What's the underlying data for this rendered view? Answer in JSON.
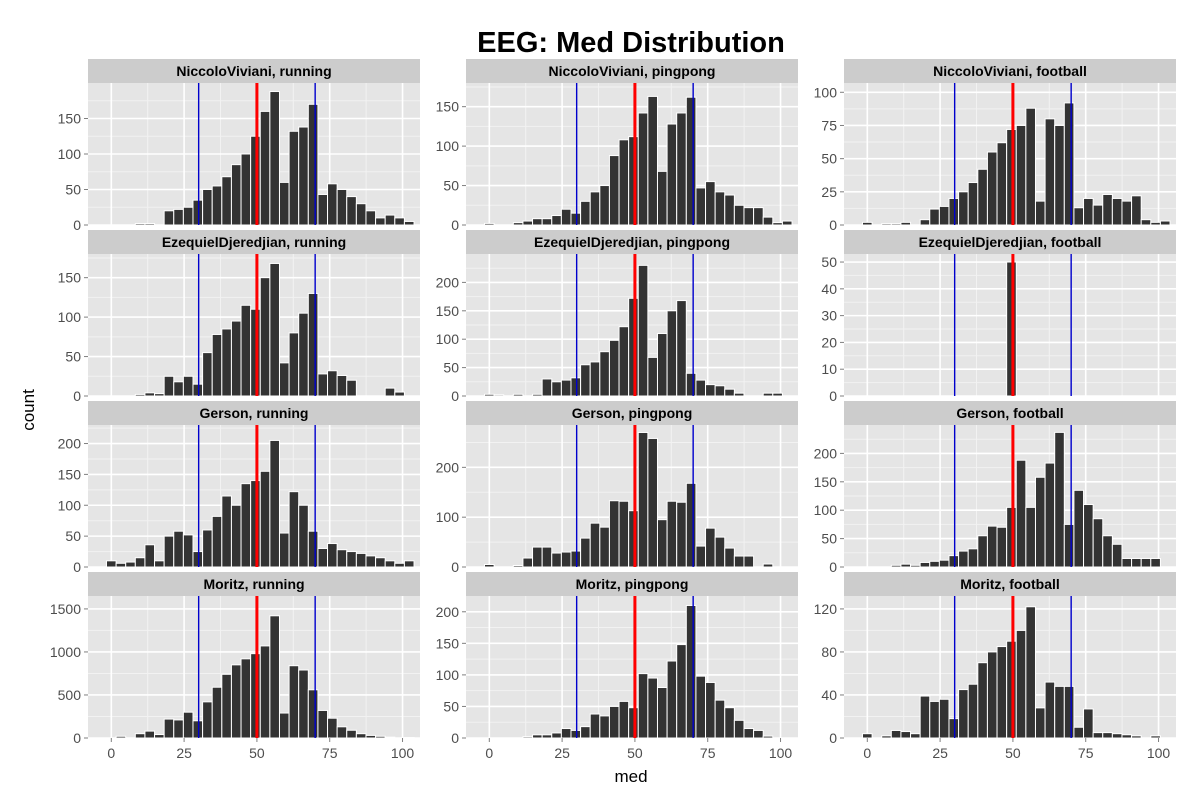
{
  "chart_data": {
    "type": "bar",
    "title": "EEG: Med Distribution",
    "xlabel": "med",
    "ylabel": "count",
    "xlim": [
      -8,
      106
    ],
    "x_ticks": [
      0,
      25,
      50,
      75,
      100
    ],
    "bin_width": 3.3,
    "bin_centers": [
      0,
      3.3,
      6.6,
      9.9,
      13.2,
      16.5,
      19.8,
      23.1,
      26.4,
      29.7,
      33,
      36.3,
      39.6,
      42.9,
      46.2,
      49.5,
      52.8,
      56.1,
      59.4,
      62.7,
      66,
      69.3,
      72.6,
      75.9,
      79.2,
      82.5,
      85.8,
      89.1,
      92.4,
      95.7,
      99,
      102.3
    ],
    "reference_lines": [
      {
        "x": 30,
        "color": "#0000cc"
      },
      {
        "x": 50,
        "color": "#ff0000"
      },
      {
        "x": 70,
        "color": "#0000cc"
      }
    ],
    "grid": true,
    "bar_color": "#333333",
    "panels": [
      {
        "strip": "NiccoloViviani, running",
        "ylim": [
          0,
          200
        ],
        "y_ticks": [
          0,
          50,
          100,
          150
        ],
        "values": [
          0,
          0,
          0,
          2,
          2,
          0,
          20,
          22,
          25,
          35,
          50,
          55,
          68,
          85,
          100,
          125,
          160,
          188,
          60,
          132,
          138,
          170,
          43,
          58,
          50,
          40,
          30,
          20,
          10,
          14,
          10,
          5
        ]
      },
      {
        "strip": "NiccoloViviani, pingpong",
        "ylim": [
          0,
          180
        ],
        "y_ticks": [
          0,
          50,
          100,
          150
        ],
        "values": [
          2,
          0,
          0,
          3,
          5,
          8,
          8,
          12,
          20,
          15,
          30,
          42,
          50,
          88,
          108,
          112,
          142,
          163,
          68,
          128,
          142,
          162,
          47,
          55,
          42,
          38,
          25,
          22,
          22,
          10,
          3,
          5
        ]
      },
      {
        "strip": "NiccoloViviani, football",
        "ylim": [
          0,
          107
        ],
        "y_ticks": [
          0,
          25,
          50,
          75,
          100
        ],
        "values": [
          2,
          0,
          1,
          1,
          2,
          0,
          4,
          12,
          14,
          20,
          25,
          32,
          42,
          55,
          62,
          72,
          75,
          88,
          18,
          80,
          75,
          92,
          13,
          20,
          15,
          23,
          20,
          18,
          22,
          4,
          2,
          3
        ]
      },
      {
        "strip": "EzequielDjeredjian, running",
        "ylim": [
          0,
          180
        ],
        "y_ticks": [
          0,
          50,
          100,
          150
        ],
        "values": [
          0,
          0,
          0,
          2,
          4,
          3,
          25,
          18,
          25,
          15,
          55,
          78,
          85,
          95,
          115,
          110,
          150,
          168,
          42,
          80,
          105,
          130,
          28,
          32,
          26,
          20,
          0,
          0,
          0,
          10,
          5,
          0
        ]
      },
      {
        "strip": "EzequielDjeredjian, pingpong",
        "ylim": [
          0,
          250
        ],
        "y_ticks": [
          0,
          50,
          100,
          150,
          200
        ],
        "values": [
          3,
          2,
          0,
          3,
          0,
          3,
          30,
          25,
          28,
          32,
          55,
          60,
          78,
          98,
          122,
          172,
          230,
          68,
          110,
          150,
          168,
          40,
          28,
          20,
          18,
          12,
          5,
          0,
          0,
          5,
          5,
          0
        ]
      },
      {
        "strip": "EzequielDjeredjian, football",
        "ylim": [
          0,
          53
        ],
        "y_ticks": [
          0,
          10,
          20,
          30,
          40,
          50
        ],
        "values": [
          0,
          0,
          0,
          0,
          0,
          0,
          0,
          0,
          0,
          0,
          0,
          0,
          0,
          0,
          0,
          50,
          0,
          0,
          0,
          0,
          0,
          0,
          0,
          0,
          0,
          0,
          0,
          0,
          0,
          0,
          0,
          0
        ]
      },
      {
        "strip": "Gerson, running",
        "ylim": [
          0,
          230
        ],
        "y_ticks": [
          0,
          50,
          100,
          150,
          200
        ],
        "values": [
          10,
          6,
          8,
          15,
          36,
          10,
          50,
          58,
          52,
          25,
          60,
          82,
          115,
          100,
          135,
          140,
          155,
          205,
          55,
          122,
          100,
          58,
          30,
          38,
          28,
          25,
          22,
          18,
          15,
          10,
          6,
          10
        ]
      },
      {
        "strip": "Gerson, pingpong",
        "ylim": [
          0,
          285
        ],
        "y_ticks": [
          0,
          100,
          200
        ],
        "values": [
          5,
          0,
          0,
          3,
          18,
          40,
          40,
          28,
          30,
          32,
          58,
          88,
          80,
          133,
          132,
          113,
          270,
          258,
          95,
          132,
          130,
          168,
          42,
          78,
          60,
          38,
          22,
          22,
          0,
          6,
          0,
          0
        ]
      },
      {
        "strip": "Gerson, football",
        "ylim": [
          0,
          250
        ],
        "y_ticks": [
          0,
          50,
          100,
          150,
          200
        ],
        "values": [
          0,
          0,
          0,
          3,
          5,
          3,
          8,
          10,
          12,
          20,
          28,
          32,
          55,
          72,
          70,
          105,
          188,
          105,
          158,
          183,
          237,
          75,
          135,
          110,
          85,
          55,
          40,
          15,
          15,
          15,
          15,
          0
        ]
      },
      {
        "strip": "Moritz, running",
        "ylim": [
          0,
          1650
        ],
        "y_ticks": [
          0,
          500,
          1000,
          1500
        ],
        "values": [
          0,
          20,
          0,
          50,
          80,
          40,
          220,
          210,
          300,
          200,
          420,
          590,
          740,
          850,
          920,
          980,
          1070,
          1420,
          290,
          840,
          790,
          560,
          320,
          230,
          130,
          90,
          50,
          30,
          20,
          10,
          0,
          5
        ]
      },
      {
        "strip": "Moritz, pingpong",
        "ylim": [
          0,
          225
        ],
        "y_ticks": [
          0,
          50,
          100,
          150,
          200
        ],
        "values": [
          0,
          0,
          0,
          0,
          2,
          5,
          5,
          8,
          15,
          12,
          18,
          38,
          35,
          50,
          58,
          48,
          102,
          95,
          80,
          122,
          148,
          210,
          98,
          88,
          60,
          48,
          28,
          15,
          12,
          3,
          0,
          0
        ]
      },
      {
        "strip": "Moritz, football",
        "ylim": [
          0,
          132
        ],
        "y_ticks": [
          0,
          40,
          80,
          120
        ],
        "values": [
          4,
          0,
          2,
          7,
          6,
          4,
          39,
          34,
          36,
          18,
          45,
          50,
          70,
          80,
          85,
          90,
          100,
          122,
          28,
          52,
          48,
          48,
          10,
          27,
          5,
          5,
          4,
          3,
          2,
          0,
          2,
          0
        ]
      }
    ]
  }
}
